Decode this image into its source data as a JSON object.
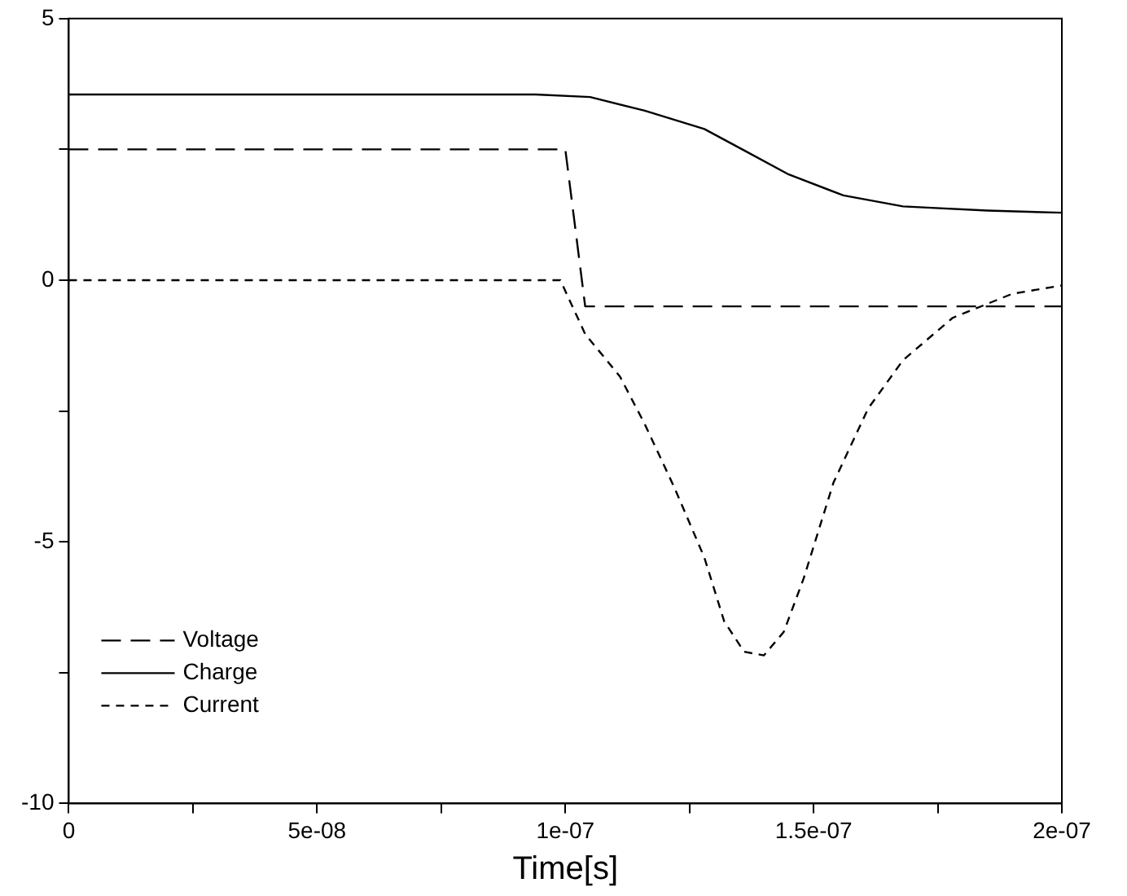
{
  "chart_data": {
    "type": "line",
    "xlabel": "Time[s]",
    "xlim": [
      0,
      2e-07
    ],
    "ylim": [
      -10,
      5
    ],
    "xticks": [
      0,
      {
        "value": 2.5e-08,
        "label": null
      },
      {
        "value": 5e-08,
        "label": "5e-08"
      },
      {
        "value": 7.5e-08,
        "label": null
      },
      {
        "value": 1e-07,
        "label": "1e-07"
      },
      {
        "value": 1.25e-07,
        "label": null
      },
      {
        "value": 1.5e-07,
        "label": "1.5e-07"
      },
      {
        "value": 1.75e-07,
        "label": null
      },
      {
        "value": 2e-07,
        "label": "2e-07"
      }
    ],
    "yticks": [
      -10,
      {
        "value": -7.5,
        "label": null
      },
      -5,
      {
        "value": -2.5,
        "label": null
      },
      0,
      {
        "value": 2.5,
        "label": null
      },
      5
    ],
    "grid": false,
    "legend": "bottom left",
    "marker": "none",
    "series": [
      {
        "name": "Voltage",
        "color": "#000000",
        "line_style": "dashed",
        "x": [
          0,
          1e-07,
          1.04e-07,
          2e-07
        ],
        "values": [
          2.5,
          2.5,
          -0.5,
          -0.5
        ]
      },
      {
        "name": "Charge",
        "color": "#000000",
        "line_style": "solid",
        "x": [
          0,
          9.4e-08,
          1.05e-07,
          1.16e-07,
          1.28e-07,
          1.37e-07,
          1.45e-07,
          1.56e-07,
          1.68e-07,
          1.85e-07,
          2e-07
        ],
        "values": [
          3.55,
          3.55,
          3.5,
          3.24,
          2.89,
          2.43,
          2.02,
          1.62,
          1.41,
          1.33,
          1.29
        ]
      },
      {
        "name": "Current",
        "color": "#000000",
        "line_style": "dotted",
        "x": [
          0,
          9.9e-08,
          1.04e-07,
          1.11e-07,
          1.16e-07,
          1.22e-07,
          1.28e-07,
          1.32e-07,
          1.36e-07,
          1.4e-07,
          1.44e-07,
          1.48e-07,
          1.54e-07,
          1.61e-07,
          1.68e-07,
          1.78e-07,
          1.9e-07,
          2e-07
        ],
        "values": [
          0,
          0,
          -1.03,
          -1.84,
          -2.75,
          -3.97,
          -5.3,
          -6.52,
          -7.1,
          -7.17,
          -6.72,
          -5.7,
          -3.87,
          -2.45,
          -1.53,
          -0.72,
          -0.26,
          -0.1
        ]
      }
    ]
  }
}
